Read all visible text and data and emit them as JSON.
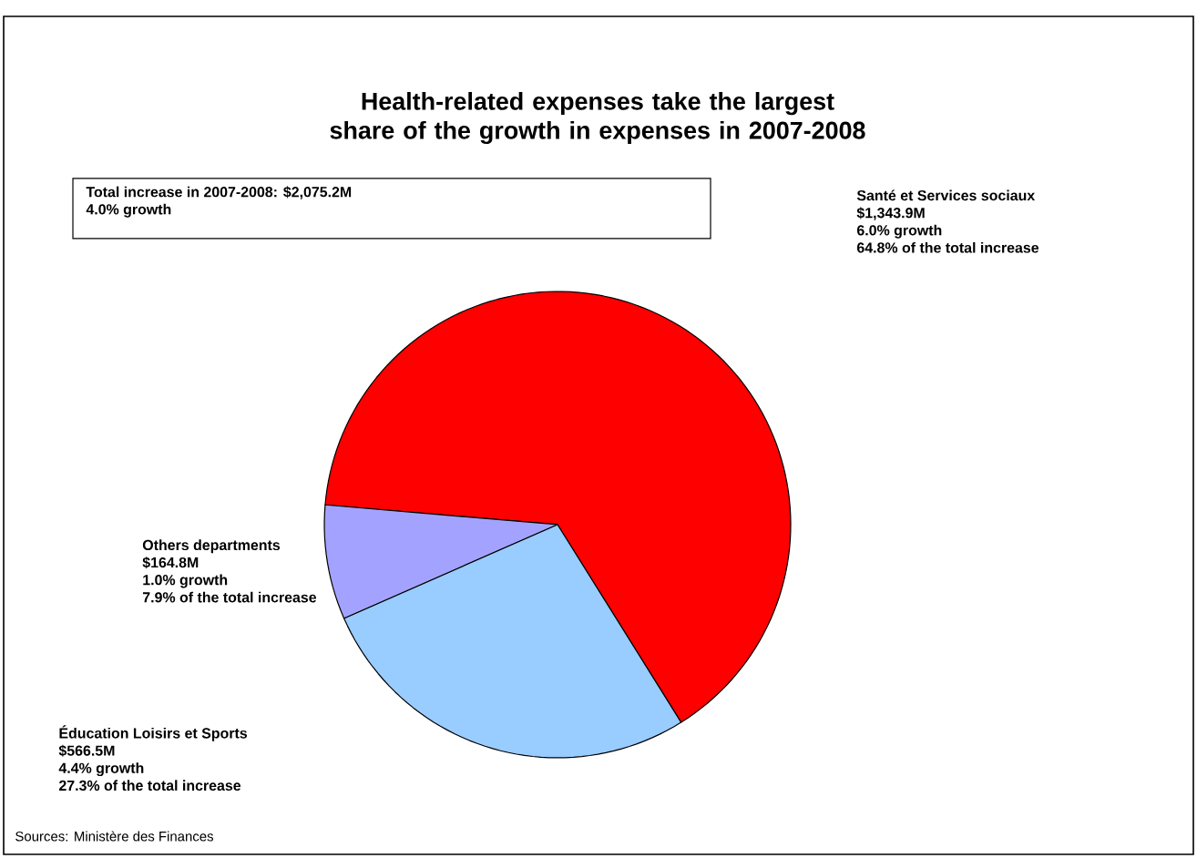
{
  "chart_data": {
    "type": "pie",
    "title": "Health-related expenses take the largest share of the growth in expenses in 2007-2008",
    "categories": [
      "Santé et Services sociaux",
      "Others departments",
      "Éducation Loisirs et Sports"
    ],
    "values": [
      1343.9,
      164.8,
      566.5
    ],
    "value_labels": [
      "$1,343.9M",
      "$164.8M",
      "$566.5M"
    ],
    "colors": [
      "#ff0000",
      "#a3a3ff",
      "#99ccff"
    ],
    "annotations": [
      "Total increase in 2007-2008: $2,075.2M",
      "4.0% growth",
      "6.0% growth",
      "64.8% of the total increase",
      "1.0% growth",
      "7.9% of the total increase",
      "4.4% growth",
      "27.3% of the total increase",
      "Sources: Ministère des Finances"
    ]
  }
}
